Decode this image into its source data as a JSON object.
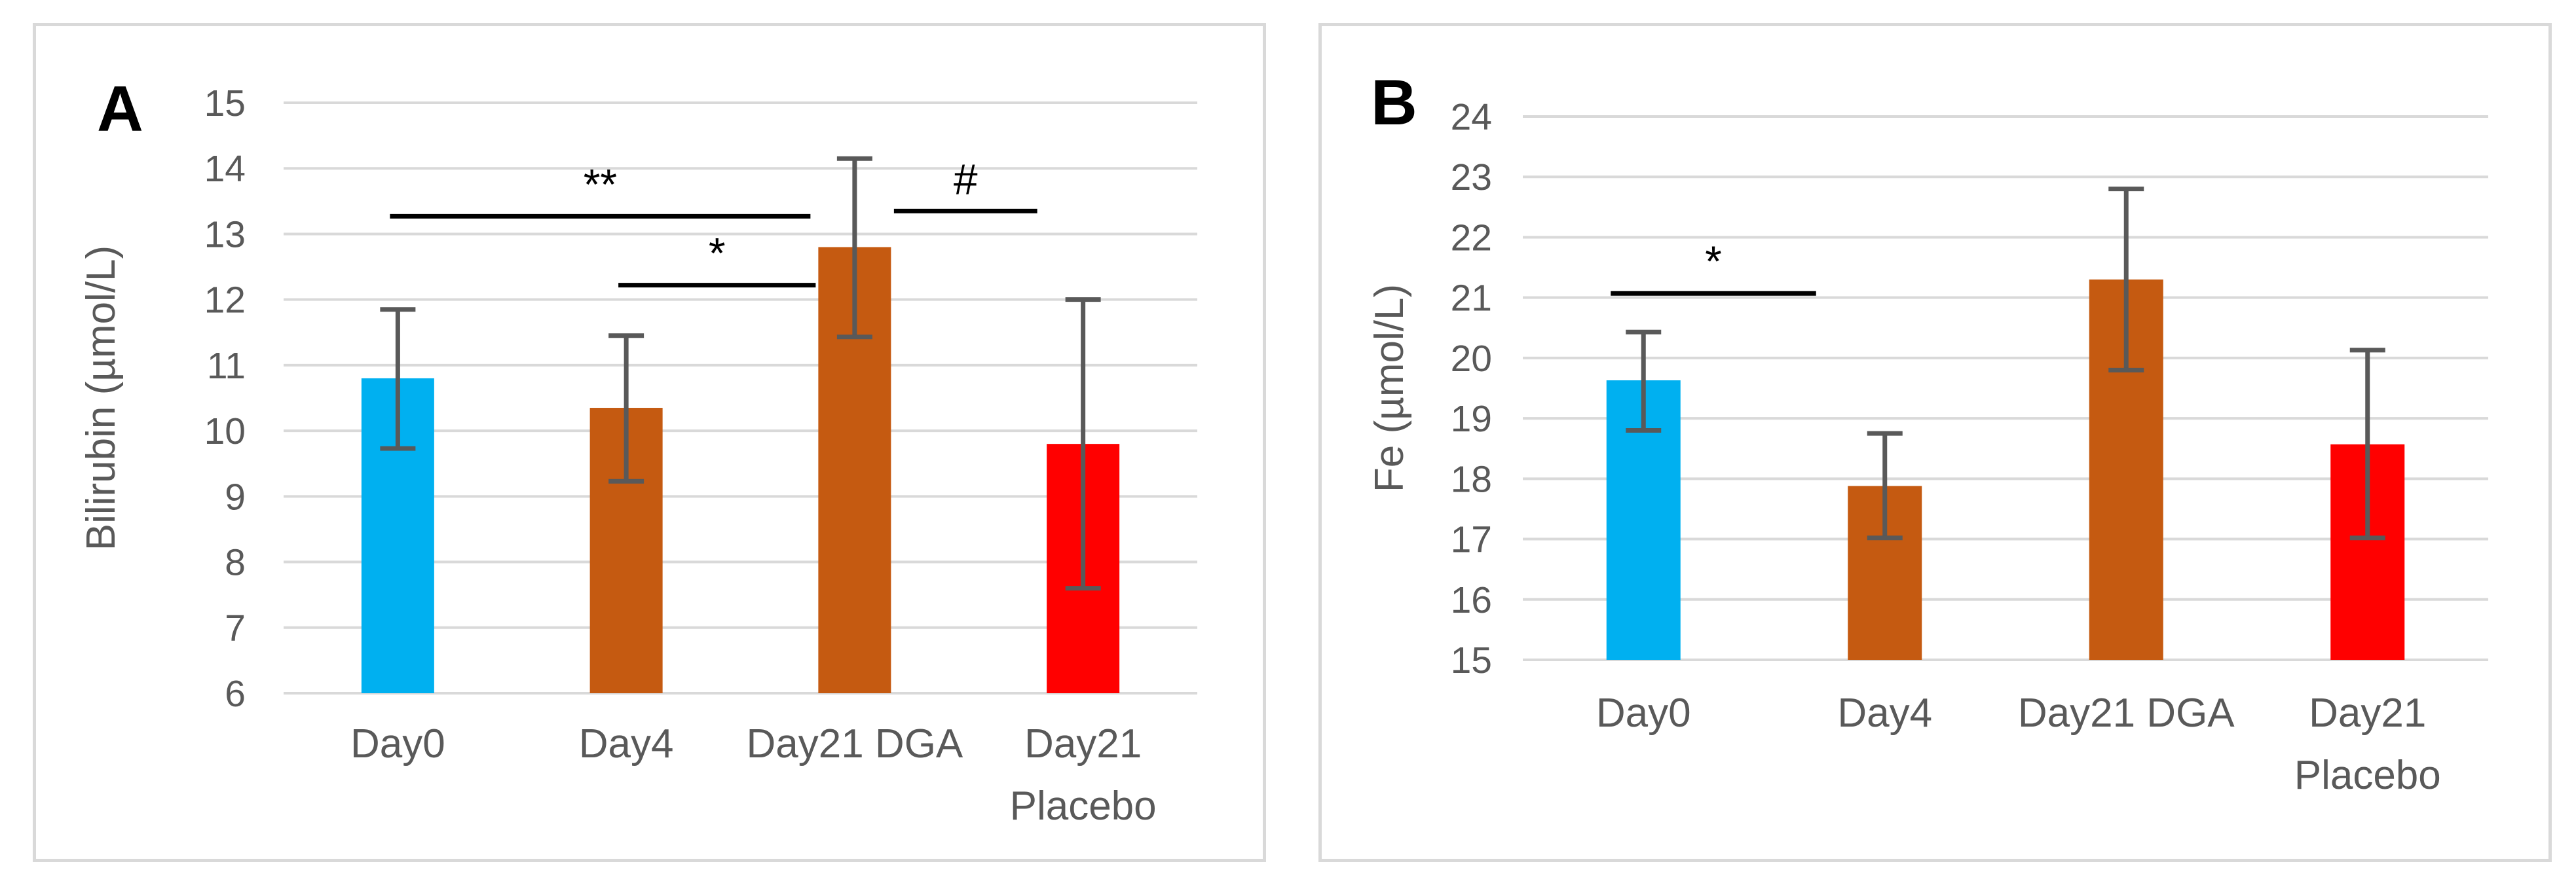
{
  "chart_data": [
    {
      "type": "bar",
      "panel_label": "A",
      "ylabel": "Bilirubin (µmol/L)",
      "xlabel": "",
      "ylim": [
        6,
        15
      ],
      "yticks": [
        6,
        7,
        8,
        9,
        10,
        11,
        12,
        13,
        14,
        15
      ],
      "grid": true,
      "categories": [
        [
          "Day0"
        ],
        [
          "Day4"
        ],
        [
          "Day21 DGA"
        ],
        [
          "Day21",
          "Placebo"
        ]
      ],
      "values": [
        10.8,
        10.35,
        12.8,
        9.8
      ],
      "error_low": [
        9.73,
        9.23,
        11.43,
        7.6
      ],
      "error_high": [
        11.85,
        11.45,
        14.15,
        12.0
      ],
      "colors": [
        "#00b0f0",
        "#c55a11",
        "#c55a11",
        "#ff0000"
      ],
      "annotations": [
        {
          "label": "**",
          "from": 0,
          "to": 2,
          "y": 13.27
        },
        {
          "label": "*",
          "from": 1,
          "to": 2,
          "y": 12.22
        },
        {
          "label": "#",
          "from": 2,
          "to": 3,
          "y": 13.35
        }
      ]
    },
    {
      "type": "bar",
      "panel_label": "B",
      "ylabel": "Fe (µmol/L)",
      "xlabel": "",
      "ylim": [
        15,
        24
      ],
      "yticks": [
        15,
        16,
        17,
        18,
        19,
        20,
        21,
        22,
        23,
        24
      ],
      "grid": true,
      "categories": [
        [
          "Day0"
        ],
        [
          "Day4"
        ],
        [
          "Day21 DGA"
        ],
        [
          "Day21",
          "Placebo"
        ]
      ],
      "values": [
        19.63,
        17.88,
        21.3,
        18.57
      ],
      "error_low": [
        18.8,
        17.02,
        19.8,
        17.02
      ],
      "error_high": [
        20.43,
        18.75,
        22.8,
        20.13
      ],
      "colors": [
        "#00b0f0",
        "#c55a11",
        "#c55a11",
        "#ff0000"
      ],
      "annotations": [
        {
          "label": "*",
          "from": 0,
          "to": 1,
          "y": 21.07
        }
      ]
    }
  ]
}
